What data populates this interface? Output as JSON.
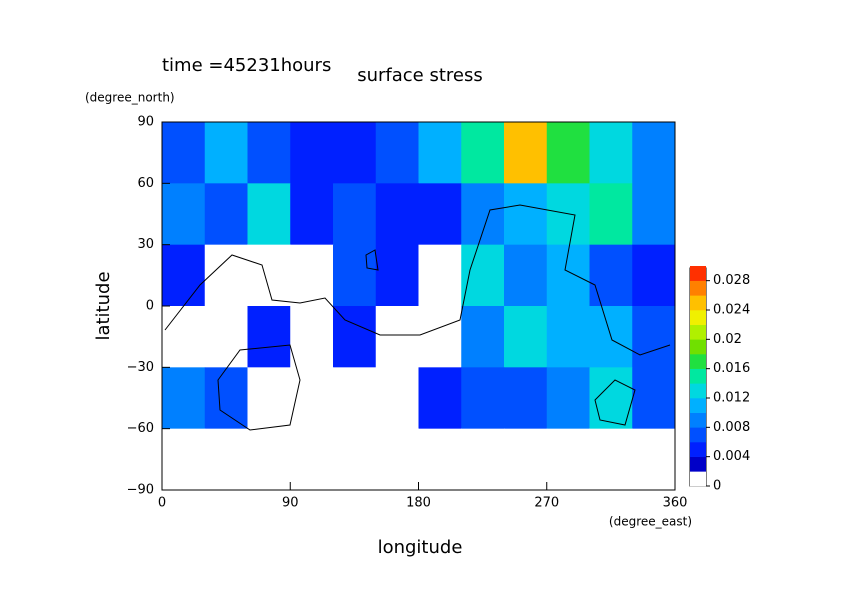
{
  "chart_data": {
    "type": "contour",
    "title": "surface stress",
    "subtitle": "time =45231hours",
    "xlabel": "longitude",
    "xunit": "(degree_east)",
    "ylabel": "latitude",
    "yunit": "(degree_north)",
    "x": [
      15,
      45,
      75,
      105,
      135,
      165,
      195,
      225,
      255,
      285,
      315,
      345
    ],
    "y": [
      75,
      45,
      15,
      -15,
      -45,
      -75
    ],
    "z": [
      [
        0.006,
        0.01,
        0.006,
        0.004,
        0.004,
        0.006,
        0.01,
        0.014,
        0.024,
        0.016,
        0.012,
        0.008
      ],
      [
        0.008,
        0.006,
        0.012,
        0.004,
        0.006,
        0.004,
        0.004,
        0.008,
        0.01,
        0.012,
        0.014,
        0.008
      ],
      [
        0.004,
        0.001,
        0.001,
        0.001,
        0.006,
        0.004,
        0.001,
        0.012,
        0.008,
        0.01,
        0.006,
        0.004
      ],
      [
        0.001,
        0.001,
        0.004,
        0.001,
        0.004,
        0.001,
        0.001,
        0.008,
        0.012,
        0.01,
        0.01,
        0.006
      ],
      [
        0.008,
        0.006,
        0.001,
        0.001,
        0.001,
        0.001,
        0.004,
        0.006,
        0.006,
        0.008,
        0.012,
        0.006
      ],
      [
        0.001,
        0.001,
        0.001,
        0.001,
        0.001,
        0.001,
        0.001,
        0.001,
        0.001,
        0.001,
        0.001,
        0.001
      ]
    ],
    "xlim": [
      0,
      360
    ],
    "xticks": [
      0,
      90,
      180,
      270,
      360
    ],
    "ylim": [
      -90,
      90
    ],
    "yticks": [
      {
        "value": -90,
        "label": "−90"
      },
      {
        "value": -60,
        "label": "−60"
      },
      {
        "value": -30,
        "label": "−30"
      },
      0,
      30,
      60,
      90
    ],
    "clim": [
      0,
      0.03
    ],
    "cticks": [
      0,
      0.004,
      0.008,
      0.012,
      0.016,
      0.02,
      0.024,
      0.028
    ],
    "colors": [
      "#ffffff",
      "#0000c8",
      "#0020ff",
      "#0050ff",
      "#0080ff",
      "#00b0ff",
      "#00d8e0",
      "#00e8a0",
      "#20e040",
      "#70e000",
      "#b0f000",
      "#f0f000",
      "#ffc000",
      "#ff8000",
      "#ff3000"
    ]
  }
}
